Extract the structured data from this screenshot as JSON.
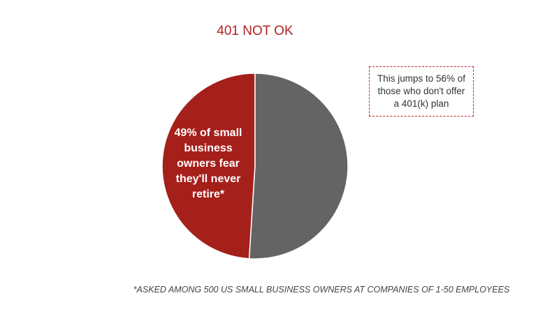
{
  "chart_data": {
    "type": "pie",
    "title": "401 NOT OK",
    "values": [
      49,
      51
    ],
    "value_labels": [
      "49% of small business owners fear they'll never retire*",
      null
    ],
    "colors": [
      "#a51f1b",
      "#646464"
    ],
    "annotation": "This jumps to 56% of those who don't offer a 401(k) plan",
    "footnote": "*ASKED AMONG 500 US SMALL BUSINESS OWNERS AT COMPANIES OF 1-50 EMPLOYEES"
  }
}
